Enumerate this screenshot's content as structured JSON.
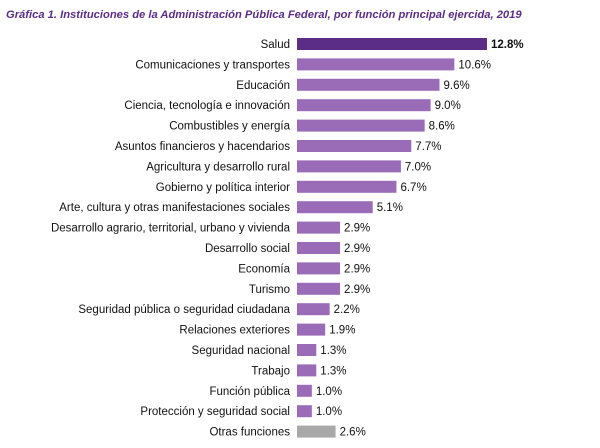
{
  "chart_data": {
    "type": "bar",
    "orientation": "horizontal",
    "title": "Gráfica 1. Instituciones de la Administración Pública Federal, por función principal ejercida, 2019",
    "categories": [
      "Salud",
      "Comunicaciones y transportes",
      "Educación",
      "Ciencia, tecnología e innovación",
      "Combustibles y energía",
      "Asuntos financieros y hacendarios",
      "Agricultura y desarrollo rural",
      "Gobierno y política interior",
      "Arte, cultura y otras manifestaciones sociales",
      "Desarrollo agrario, territorial, urbano y vivienda",
      "Desarrollo social",
      "Economía",
      "Turismo",
      "Seguridad pública o seguridad ciudadana",
      "Relaciones exteriores",
      "Seguridad nacional",
      "Trabajo",
      "Función pública",
      "Protección y seguridad social",
      "Otras funciones"
    ],
    "values": [
      12.8,
      10.6,
      9.6,
      9.0,
      8.6,
      7.7,
      7.0,
      6.7,
      5.1,
      2.9,
      2.9,
      2.9,
      2.9,
      2.2,
      1.9,
      1.3,
      1.3,
      1.0,
      1.0,
      2.6
    ],
    "value_labels": [
      "12.8%",
      "10.6%",
      "9.6%",
      "9.0%",
      "8.6%",
      "7.7%",
      "7.0%",
      "6.7%",
      "5.1%",
      "2.9%",
      "2.9%",
      "2.9%",
      "2.9%",
      "2.2%",
      "1.9%",
      "1.3%",
      "1.3%",
      "1.0%",
      "1.0%",
      "2.6%"
    ],
    "highlight_index": 0,
    "xlim": [
      0,
      12.8
    ],
    "grid": false,
    "colors": {
      "highlight": "#5b2d86",
      "default": "#9a6cb8",
      "other": "#a8a8a8",
      "title": "#5b2d86"
    }
  }
}
